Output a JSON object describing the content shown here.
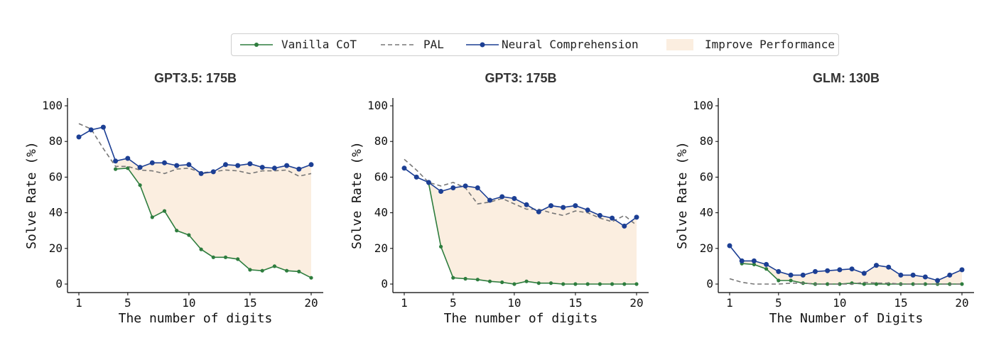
{
  "legend": {
    "items": [
      {
        "key": "vanilla",
        "label": "Vanilla CoT",
        "color": "#2e7d3e",
        "style": "solid-dot"
      },
      {
        "key": "pal",
        "label": "PAL",
        "color": "#777777",
        "style": "dashed"
      },
      {
        "key": "neural",
        "label": "Neural Comprehension",
        "color": "#1c3f94",
        "style": "solid-dot"
      },
      {
        "key": "improve",
        "label": "Improve Performance",
        "color": "#fbeee0",
        "style": "fill"
      }
    ],
    "placement": "top-center"
  },
  "chart_data": [
    {
      "type": "line",
      "title": "GPT3.5: 175B",
      "xlabel": "The number of digits",
      "ylabel": "Solve Rate (%)",
      "xlim": [
        1,
        20
      ],
      "ylim": [
        0,
        100
      ],
      "xticks": [
        1,
        5,
        10,
        15,
        20
      ],
      "yticks": [
        0,
        20,
        40,
        60,
        80,
        100
      ],
      "grid": false,
      "x": [
        1,
        2,
        3,
        4,
        5,
        6,
        7,
        8,
        9,
        10,
        11,
        12,
        13,
        14,
        15,
        16,
        17,
        18,
        19,
        20
      ],
      "series": [
        {
          "name": "Vanilla CoT",
          "values": [
            null,
            null,
            null,
            64.5,
            65,
            55.5,
            37.5,
            41,
            30,
            27.5,
            19.5,
            15,
            15,
            14,
            8,
            7.5,
            10,
            7.5,
            7,
            3.5
          ]
        },
        {
          "name": "PAL",
          "values": [
            90,
            87,
            76,
            66,
            66,
            64,
            63.5,
            62,
            64.5,
            65,
            62.5,
            63,
            64,
            63.5,
            62,
            63.5,
            63.5,
            64,
            60.5,
            62
          ]
        },
        {
          "name": "Neural Comprehension",
          "values": [
            82.5,
            86.5,
            88,
            69,
            70.5,
            65.5,
            68,
            68,
            66.5,
            67,
            62,
            63,
            67,
            66.5,
            67.5,
            65.5,
            65,
            66.5,
            64.5,
            67
          ]
        }
      ]
    },
    {
      "type": "line",
      "title": "GPT3: 175B",
      "xlabel": "The number of digits",
      "ylabel": "Solve Rate (%)",
      "xlim": [
        1,
        20
      ],
      "ylim": [
        0,
        100
      ],
      "xticks": [
        1,
        5,
        10,
        15,
        20
      ],
      "yticks": [
        0,
        20,
        40,
        60,
        80,
        100
      ],
      "grid": false,
      "x": [
        1,
        2,
        3,
        4,
        5,
        6,
        7,
        8,
        9,
        10,
        11,
        12,
        13,
        14,
        15,
        16,
        17,
        18,
        19,
        20
      ],
      "series": [
        {
          "name": "Vanilla CoT",
          "values": [
            null,
            null,
            56.5,
            21,
            3.5,
            3,
            2.5,
            1.5,
            1,
            0,
            1.5,
            0.5,
            0.5,
            0,
            0,
            0,
            0,
            0,
            0,
            0
          ]
        },
        {
          "name": "PAL",
          "values": [
            70,
            64,
            57,
            55,
            57,
            54,
            45,
            46,
            48,
            45,
            42,
            42,
            40,
            38.5,
            41,
            40,
            37,
            35,
            38.5,
            33
          ]
        },
        {
          "name": "Neural Comprehension",
          "values": [
            65,
            60,
            57,
            52,
            54,
            55,
            54,
            47,
            49,
            48,
            44.5,
            40.5,
            44,
            43,
            44,
            41.5,
            38.5,
            37,
            32.5,
            37.5
          ]
        }
      ]
    },
    {
      "type": "line",
      "title": "GLM: 130B",
      "xlabel": "The Number of Digits",
      "ylabel": "Solve Rate (%)",
      "xlim": [
        1,
        20
      ],
      "ylim": [
        0,
        100
      ],
      "xticks": [
        1,
        5,
        10,
        15,
        20
      ],
      "yticks": [
        0,
        20,
        40,
        60,
        80,
        100
      ],
      "grid": false,
      "x": [
        1,
        2,
        3,
        4,
        5,
        6,
        7,
        8,
        9,
        10,
        11,
        12,
        13,
        14,
        15,
        16,
        17,
        18,
        19,
        20
      ],
      "series": [
        {
          "name": "Vanilla CoT",
          "values": [
            null,
            11.5,
            11,
            8.5,
            2,
            2,
            0.5,
            0,
            0,
            0,
            0.5,
            0,
            0,
            0,
            0,
            0,
            0,
            0,
            0,
            0
          ]
        },
        {
          "name": "PAL",
          "values": [
            3,
            1,
            0,
            0,
            0,
            0.5,
            0.5,
            0,
            0,
            0,
            0,
            1,
            0.5,
            0.5,
            0,
            0,
            0,
            0,
            0,
            0
          ]
        },
        {
          "name": "Neural Comprehension",
          "values": [
            21.5,
            13,
            13,
            11,
            7,
            5,
            5,
            7,
            7.5,
            8,
            8.5,
            6,
            10.5,
            9.5,
            5,
            5,
            4,
            2,
            5,
            8
          ]
        }
      ]
    }
  ]
}
